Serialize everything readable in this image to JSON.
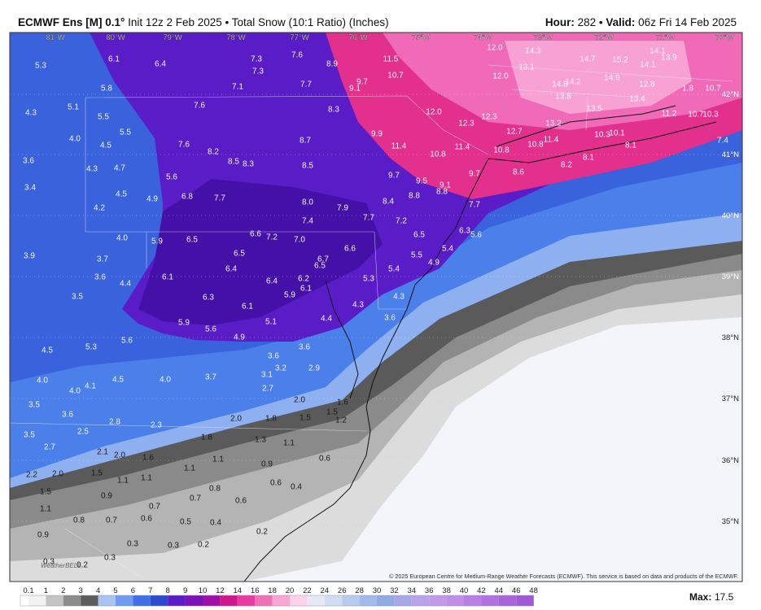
{
  "header": {
    "model": "ECMWF Ens [M] 0.1°",
    "info": "Init 12z 2 Feb 2025 • Total Snow (10:1 Ratio) (Inches)",
    "hour_label": "Hour:",
    "hour": "282 •",
    "valid_label": "Valid:",
    "valid": "06z Fri 14 Feb 2025"
  },
  "map": {
    "longitudes": [
      "81°W",
      "80°W",
      "79°W",
      "78°W",
      "77°W",
      "76°W",
      "75°W",
      "74°W",
      "73°W",
      "72°W",
      "71°W",
      "70°W"
    ],
    "latitudes": [
      "42°N",
      "41°N",
      "40°N",
      "39°N",
      "38°N",
      "37°N",
      "36°N",
      "35°N"
    ],
    "labels": [
      "5.3",
      "6.1",
      "6.4",
      "7.3",
      "7.3",
      "7.6",
      "8.9",
      "11.5",
      "12.0",
      "14.3",
      "14.1",
      "13.9",
      "13.1",
      "14.7",
      "15.2",
      "14.1",
      "12.0",
      "10.7",
      "9.7",
      "9.1",
      "7.7",
      "7.1",
      "5.8",
      "14.8",
      "14.2",
      "14.9",
      "12.8",
      "1.8",
      "10.7",
      "13.8",
      "5.1",
      "4.3",
      "7.6",
      "8.3",
      "13.5",
      "13.4",
      "12.0",
      "12.3",
      "12.3",
      "13.2",
      "11.2",
      "10.7",
      "10.3",
      "5.5",
      "5.5",
      "4.0",
      "4.5",
      "7.6",
      "8.2",
      "8.7",
      "9.9",
      "11.4",
      "11.4",
      "10.8",
      "12.7",
      "10.3",
      "10.1",
      "10.8",
      "11.4",
      "10.8",
      "8.1",
      "7.4",
      "3.6",
      "4.3",
      "4.7",
      "8.5",
      "8.3",
      "8.5",
      "8.1",
      "8.2",
      "8.6",
      "9.7",
      "9.7",
      "9.5",
      "9.1",
      "8.8",
      "8.8",
      "5.6",
      "3.4",
      "4.5",
      "4.9",
      "6.8",
      "7.7",
      "8.0",
      "7.9",
      "8.4",
      "7.7",
      "4.2",
      "7.4",
      "7.7",
      "7.2",
      "4.0",
      "5.9",
      "6.5",
      "6.6",
      "7.2",
      "7.0",
      "6.5",
      "6.3",
      "5.6",
      "3.9",
      "3.7",
      "6.5",
      "6.6",
      "5.4",
      "5.5",
      "4.9",
      "6.7",
      "6.5",
      "6.4",
      "3.6",
      "4.4",
      "6.1",
      "6.2",
      "5.4",
      "6.4",
      "5.3",
      "6.1",
      "5.9",
      "3.5",
      "6.3",
      "4.3",
      "4.3",
      "6.1",
      "4.4",
      "3.6",
      "5.1",
      "5.9",
      "5.6",
      "4.9",
      "5.6",
      "5.3",
      "3.6",
      "4.5",
      "3.6",
      "3.2",
      "3.1",
      "2.9",
      "4.0",
      "4.1",
      "4.5",
      "4.0",
      "3.7",
      "2.7",
      "4.0",
      "3.5",
      "2.0",
      "1.6",
      "3.6",
      "1.5",
      "1.2",
      "2.8",
      "2.3",
      "2.0",
      "1.8",
      "1.5",
      "3.5",
      "2.5",
      "1.8",
      "1.3",
      "1.1",
      "2.7",
      "2.1",
      "2.0",
      "1.6",
      "1.1",
      "0.9",
      "1.1",
      "2.2",
      "2.0",
      "1.5",
      "1.1",
      "1.1",
      "0.6",
      "0.8",
      "0.7",
      "0.6",
      "0.4",
      "1.5",
      "0.9",
      "0.6",
      "0.7",
      "1.1",
      "0.8",
      "0.7",
      "0.6",
      "0.5",
      "0.4",
      "0.9",
      "0.2",
      "0.3",
      "0.3",
      "0.2",
      "0.3",
      "0.2",
      "0.3"
    ],
    "logo": "WeatherBELL",
    "copyright": "© 2025 European Centre for Medium-Range Weather Forecasts (ECMWF). This service is based on data and products of the ECMWF."
  },
  "colorbar": {
    "labels": [
      "0.1",
      "1",
      "2",
      "3",
      "4",
      "5",
      "6",
      "7",
      "8",
      "9",
      "10",
      "12",
      "14",
      "16",
      "18",
      "20",
      "22",
      "24",
      "26",
      "28",
      "30",
      "32",
      "34",
      "36",
      "38",
      "40",
      "42",
      "44",
      "46",
      "48"
    ],
    "colors": [
      "#f2f2f2",
      "#c4c4c4",
      "#8c8c8c",
      "#5c5c5c",
      "#a9c3f2",
      "#6f9cf0",
      "#3f6fe6",
      "#2b4ad2",
      "#5a1cc6",
      "#7a12b8",
      "#a010a8",
      "#d0168c",
      "#e83aa0",
      "#f070b8",
      "#f7a6d4",
      "#fcd2ea",
      "#e6e8f8",
      "#d0dcf2",
      "#b8cbee",
      "#a2bbe9",
      "#92abe5",
      "#a8a8e8",
      "#b8a2e8",
      "#c29ae8",
      "#c08ee6",
      "#b880e4",
      "#b072e0",
      "#a864dc",
      "#a058d8"
    ],
    "max_label": "Max:",
    "max": "17.5"
  }
}
